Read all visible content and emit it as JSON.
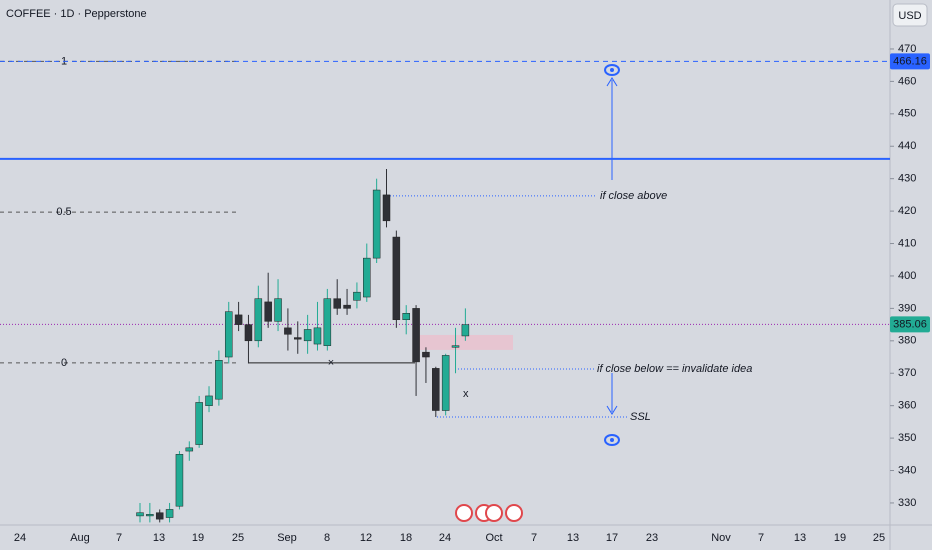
{
  "chart_data": {
    "type": "candlestick",
    "title": "COFFEE · 1D · Pepperstone",
    "currency": "USD",
    "up_color": "#22ab94",
    "down_color": "#2f3036",
    "ylim": [
      323.2,
      485.1
    ],
    "yticks": [
      330,
      340,
      350,
      360,
      370,
      380,
      390,
      400,
      410,
      420,
      430,
      440,
      450,
      460,
      470
    ],
    "x_labels": [
      "24",
      "Aug",
      "7",
      "13",
      "19",
      "25",
      "Sep",
      "8",
      "12",
      "18",
      "24",
      "Oct",
      "7",
      "13",
      "17",
      "23",
      "Nov",
      "7",
      "13",
      "19",
      "25"
    ],
    "open": [
      326,
      326,
      327,
      325.5,
      329,
      346,
      348,
      360,
      362,
      375,
      388,
      385,
      380,
      392,
      386,
      384,
      381,
      380,
      379,
      378.5,
      393,
      391,
      392.5,
      393.5,
      405.5,
      425,
      412,
      386.5,
      390,
      376.5,
      371.5,
      358.5,
      378,
      381.5
    ],
    "high": [
      330,
      330,
      328,
      330,
      346,
      349,
      363,
      366,
      377,
      392,
      392,
      388,
      397,
      401,
      399,
      390,
      386,
      388,
      392,
      396,
      399,
      396,
      398,
      410,
      430,
      433,
      414,
      391,
      391,
      378,
      372,
      376,
      384,
      390
    ],
    "low": [
      324,
      324,
      324,
      324,
      328,
      343,
      347,
      358,
      360,
      373,
      383,
      373,
      378,
      384,
      383,
      377,
      376,
      376,
      377,
      377,
      388,
      388,
      390,
      392,
      404,
      415,
      384,
      382,
      363,
      367,
      356.5,
      357,
      370,
      380
    ],
    "close": [
      327,
      326.5,
      325,
      328,
      345,
      347,
      361,
      363,
      374,
      389,
      385,
      380,
      393,
      386,
      393,
      382,
      380.5,
      383.5,
      384,
      393,
      390,
      390,
      395,
      405.5,
      426.5,
      417,
      386.5,
      388.5,
      373.5,
      375,
      358.5,
      375.5,
      378.5,
      385
    ],
    "last_price": 385.06,
    "target_price": 466.16,
    "resistance": 436.1,
    "fib_levels": [
      {
        "label": "1",
        "price": 466.16
      },
      {
        "label": "0.5",
        "price": 419.7
      },
      {
        "label": "0",
        "price": 373.2
      }
    ],
    "zone": [
      377.2,
      381.8
    ],
    "annotations": [
      {
        "text": "if close  above",
        "price": 424.7
      },
      {
        "text": "if close below == invalidate idea",
        "price": 371.3
      },
      {
        "text": "SSL",
        "price": 356.5
      },
      {
        "text": "x",
        "price": 363.5
      }
    ]
  }
}
